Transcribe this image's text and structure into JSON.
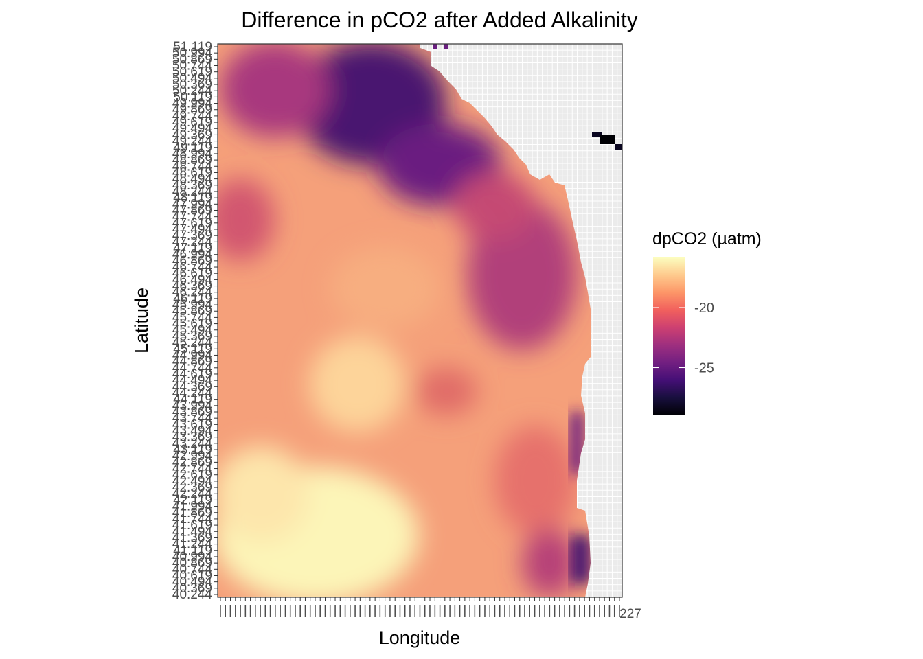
{
  "chart_data": {
    "type": "heatmap",
    "title": "Difference in pCO2 after Added Alkalinity",
    "xlabel": "Longitude",
    "ylabel": "Latitude",
    "y_tick_labels_visible": [
      "51.119",
      "50.994",
      "50.869",
      "50.744",
      "50.619",
      "50.494",
      "50.369",
      "50.244",
      "50.119",
      "49.994",
      "49.869",
      "49.744",
      "49.619",
      "49.494",
      "49.369",
      "49.244",
      "49.119",
      "48.994",
      "48.869",
      "48.744",
      "48.619",
      "48.494",
      "48.369",
      "48.244",
      "48.119",
      "47.994",
      "47.869",
      "47.744",
      "47.619",
      "47.494",
      "47.369",
      "47.244",
      "47.119",
      "46.994",
      "46.869",
      "46.744",
      "46.619",
      "46.494",
      "46.369",
      "46.244",
      "46.119",
      "45.994",
      "45.869",
      "45.744",
      "45.619",
      "45.494",
      "45.369",
      "45.244",
      "45.119",
      "44.994",
      "44.869",
      "44.744",
      "44.619",
      "44.494",
      "44.369",
      "44.244",
      "44.119",
      "43.994",
      "43.869",
      "43.744",
      "43.619",
      "43.494",
      "43.369",
      "43.244",
      "43.119",
      "42.994",
      "42.869",
      "42.744",
      "42.619",
      "42.494",
      "42.369",
      "42.244",
      "42.119",
      "41.994",
      "41.869",
      "41.744",
      "41.619",
      "41.494",
      "41.369",
      "41.244",
      "41.119",
      "40.994",
      "40.869",
      "40.744",
      "40.619",
      "40.494",
      "40.369",
      "40.244"
    ],
    "x_tick_count": 81,
    "x_tick_labels_visible": [
      "227"
    ],
    "colorbar": {
      "title": "dpCO2 (µatm)",
      "ticks": [
        -20,
        -25
      ],
      "range": [
        -29,
        -15.8
      ],
      "colormap": "magma",
      "colors": [
        "#000004",
        "#180f3d",
        "#440f76",
        "#721f81",
        "#9e2f7f",
        "#cd4071",
        "#f1605d",
        "#fd9668",
        "#feca8d",
        "#fcfdbf"
      ]
    },
    "grid": true,
    "land_color": "#ebebeb",
    "field_description": "Gridded dpCO2 values; mostly -16 to -22 µatm offshore, strongest negative (about -25 to -29 µatm) in the northern region near 49-51N and along the coastline; near-zero-change land cells shown as light grey grid."
  }
}
